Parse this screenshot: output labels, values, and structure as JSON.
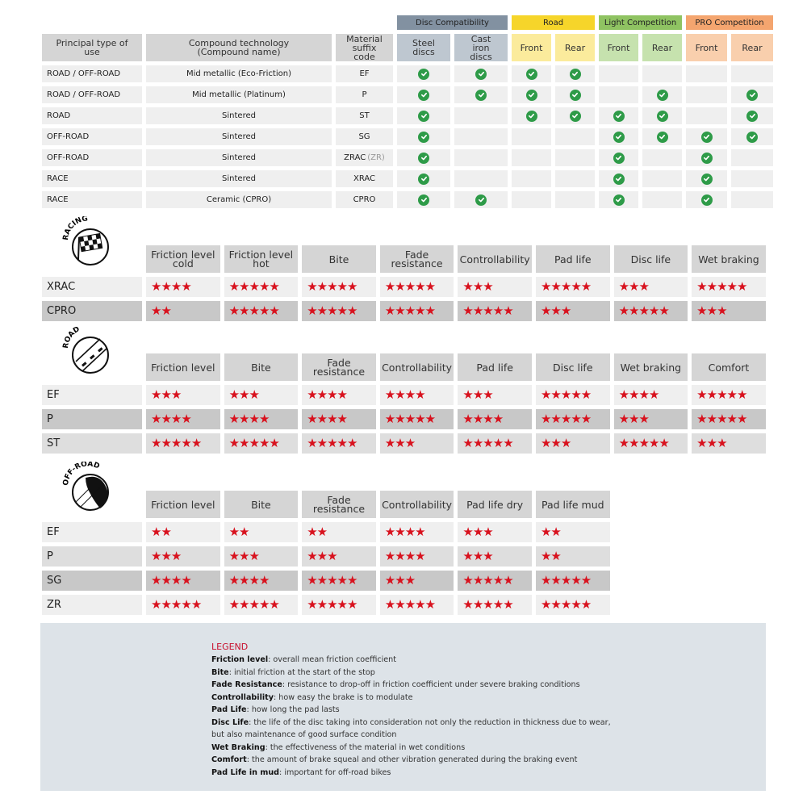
{
  "compat": {
    "headers": [
      "Principal type of use",
      "Compound technology (Compound name)",
      "Material suffix code"
    ],
    "groups": [
      {
        "label": "Disc Compatibility",
        "color": "#8291a1",
        "sub_color": "#bec7d0",
        "sub": [
          "Steel discs",
          "Cast iron discs"
        ]
      },
      {
        "label": "Road",
        "color": "#f6d52a",
        "sub_color": "#fbeb9c",
        "sub": [
          "Front",
          "Rear"
        ]
      },
      {
        "label": "Light Competition",
        "color": "#8fc362",
        "sub_color": "#c6e2ae",
        "sub": [
          "Front",
          "Rear"
        ]
      },
      {
        "label": "PRO Competition",
        "color": "#f4a56f",
        "sub_color": "#f9cfad",
        "sub": [
          "Front",
          "Rear"
        ]
      }
    ],
    "check_color": "#2e9b48",
    "rows": [
      {
        "use": "ROAD / OFF-ROAD",
        "compound": "Mid metallic (Eco-Friction)",
        "code": "EF",
        "code_note": "",
        "checks": [
          1,
          1,
          1,
          1,
          0,
          0,
          0,
          0
        ]
      },
      {
        "use": "ROAD / OFF-ROAD",
        "compound": "Mid metallic (Platinum)",
        "code": "P",
        "code_note": "",
        "checks": [
          1,
          1,
          1,
          1,
          0,
          1,
          0,
          1
        ]
      },
      {
        "use": "ROAD",
        "compound": "Sintered",
        "code": "ST",
        "code_note": "",
        "checks": [
          1,
          0,
          1,
          1,
          1,
          1,
          0,
          1
        ]
      },
      {
        "use": "OFF-ROAD",
        "compound": "Sintered",
        "code": "SG",
        "code_note": "",
        "checks": [
          1,
          0,
          0,
          0,
          1,
          1,
          1,
          1
        ]
      },
      {
        "use": "OFF-ROAD",
        "compound": "Sintered",
        "code": "ZRAC",
        "code_note": "(ZR)",
        "checks": [
          1,
          0,
          0,
          0,
          1,
          0,
          1,
          0
        ]
      },
      {
        "use": "RACE",
        "compound": "Sintered",
        "code": "XRAC",
        "code_note": "",
        "checks": [
          1,
          0,
          0,
          0,
          1,
          0,
          1,
          0
        ]
      },
      {
        "use": "RACE",
        "compound": "Ceramic (CPRO)",
        "code": "CPRO",
        "code_note": "",
        "checks": [
          1,
          1,
          0,
          0,
          1,
          0,
          1,
          0
        ]
      }
    ]
  },
  "ratings": [
    {
      "icon": "racing-flag-icon",
      "icon_label": "RACING",
      "columns": [
        "Friction level cold",
        "Friction level hot",
        "Bite",
        "Fade resistance",
        "Controllability",
        "Pad life",
        "Disc life",
        "Wet braking"
      ],
      "rows": [
        {
          "code": "XRAC",
          "bg": "#efefef",
          "stars": [
            4,
            5,
            5,
            5,
            3,
            5,
            3,
            5
          ]
        },
        {
          "code": "CPRO",
          "bg": "#c8c8c8",
          "stars": [
            2,
            5,
            5,
            5,
            5,
            3,
            5,
            3
          ]
        }
      ]
    },
    {
      "icon": "road-icon",
      "icon_label": "ROAD",
      "columns": [
        "Friction level",
        "Bite",
        "Fade resistance",
        "Controllability",
        "Pad life",
        "Disc life",
        "Wet braking",
        "Comfort"
      ],
      "rows": [
        {
          "code": "EF",
          "bg": "#efefef",
          "stars": [
            3,
            3,
            4,
            4,
            3,
            5,
            4,
            5
          ]
        },
        {
          "code": "P",
          "bg": "#c8c8c8",
          "stars": [
            4,
            4,
            4,
            5,
            4,
            5,
            3,
            5
          ]
        },
        {
          "code": "ST",
          "bg": "#dedede",
          "stars": [
            5,
            5,
            5,
            3,
            5,
            3,
            5,
            3
          ]
        }
      ]
    },
    {
      "icon": "off-road-icon",
      "icon_label": "OFF-ROAD",
      "columns": [
        "Friction level",
        "Bite",
        "Fade resistance",
        "Controllability",
        "Pad life dry",
        "Pad life mud"
      ],
      "rows": [
        {
          "code": "EF",
          "bg": "#efefef",
          "stars": [
            2,
            2,
            2,
            4,
            3,
            2
          ]
        },
        {
          "code": "P",
          "bg": "#dedede",
          "stars": [
            3,
            3,
            3,
            4,
            3,
            2
          ]
        },
        {
          "code": "SG",
          "bg": "#c8c8c8",
          "stars": [
            4,
            4,
            5,
            3,
            5,
            5
          ]
        },
        {
          "code": "ZR",
          "bg": "#efefef",
          "stars": [
            5,
            5,
            5,
            5,
            5,
            5
          ]
        }
      ]
    }
  ],
  "star_color": "#d8121e",
  "legend": {
    "title": "LEGEND",
    "items": [
      {
        "term": "Friction level",
        "definition": ": overall mean friction coefficient"
      },
      {
        "term": "Bite",
        "definition": ": initial friction at the start of the stop"
      },
      {
        "term": "Fade Resistance",
        "definition": ": resistance to drop-off in friction coefficient under severe braking conditions"
      },
      {
        "term": "Controllability",
        "definition": ": how easy the brake is to modulate"
      },
      {
        "term": "Pad Life",
        "definition": ": how long the pad lasts"
      },
      {
        "term": "Disc Life",
        "definition": ": the life of the disc taking into consideration not only the reduction in thickness due to wear, but also maintenance of good surface condition"
      },
      {
        "term": "Wet Braking",
        "definition": ": the effectiveness of the material in wet conditions"
      },
      {
        "term": "Comfort",
        "definition": ": the amount of brake squeal and other vibration generated during the braking event"
      },
      {
        "term": "Pad Life in mud",
        "definition": ": important for off-road bikes"
      }
    ]
  }
}
